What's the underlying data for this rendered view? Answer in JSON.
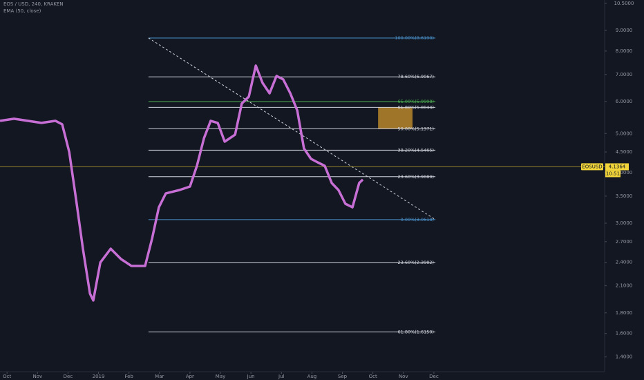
{
  "chart_data": {
    "type": "line",
    "title": "EOS / USD, 240, KRAKEN",
    "subtitle": "EMA (50, close)",
    "log": true,
    "xlim": [
      -0.23,
      19.6
    ],
    "ylim": [
      1.287,
      10.7
    ],
    "xticks": [
      {
        "value": 0,
        "label": "Oct"
      },
      {
        "value": 1,
        "label": "Nov"
      },
      {
        "value": 2,
        "label": "Dec"
      },
      {
        "value": 3,
        "label": "2019"
      },
      {
        "value": 4,
        "label": "Feb"
      },
      {
        "value": 5,
        "label": "Mar"
      },
      {
        "value": 6,
        "label": "Apr"
      },
      {
        "value": 7,
        "label": "May"
      },
      {
        "value": 8,
        "label": "Jun"
      },
      {
        "value": 9,
        "label": "Jul"
      },
      {
        "value": 10,
        "label": "Aug"
      },
      {
        "value": 11,
        "label": "Sep"
      },
      {
        "value": 12,
        "label": "Oct"
      },
      {
        "value": 13,
        "label": "Nov"
      },
      {
        "value": 14,
        "label": "Dec"
      }
    ],
    "yticks": [
      {
        "value": 10.5,
        "label": "10.5000"
      },
      {
        "value": 9,
        "label": "9.0000"
      },
      {
        "value": 8,
        "label": "8.0000"
      },
      {
        "value": 7,
        "label": "7.0000"
      },
      {
        "value": 6,
        "label": "6.0000"
      },
      {
        "value": 5,
        "label": "5.0000"
      },
      {
        "value": 4.5,
        "label": "4.5000"
      },
      {
        "value": 4,
        "label": "4.0000"
      },
      {
        "value": 3.5,
        "label": "3.5000"
      },
      {
        "value": 3,
        "label": "3.0000"
      },
      {
        "value": 2.7,
        "label": "2.7000"
      },
      {
        "value": 2.4,
        "label": "2.4000"
      },
      {
        "value": 2.1,
        "label": "2.1000"
      },
      {
        "value": 1.8,
        "label": "1.8000"
      },
      {
        "value": 1.6,
        "label": "1.6000"
      },
      {
        "value": 1.4,
        "label": "1.4000"
      }
    ],
    "series": [
      {
        "name": "EMA (50, close)",
        "color": "#c86fd6",
        "x": [
          -0.23,
          0.23,
          0.68,
          1.13,
          1.59,
          1.81,
          2.04,
          2.27,
          2.49,
          2.72,
          2.83,
          3.06,
          3.4,
          3.74,
          4.08,
          4.53,
          4.76,
          4.98,
          5.21,
          5.66,
          6.0,
          6.23,
          6.46,
          6.68,
          6.91,
          7.14,
          7.48,
          7.7,
          7.93,
          8.16,
          8.38,
          8.61,
          8.84,
          9.06,
          9.29,
          9.52,
          9.74,
          9.97,
          10.19,
          10.42,
          10.65,
          10.87,
          11.1,
          11.33,
          11.55,
          11.67
        ],
        "values": [
          5.374,
          5.438,
          5.374,
          5.311,
          5.374,
          5.269,
          4.501,
          3.417,
          2.594,
          2.008,
          1.931,
          2.398,
          2.594,
          2.445,
          2.351,
          2.351,
          2.752,
          3.285,
          3.555,
          3.625,
          3.697,
          4.161,
          4.87,
          5.374,
          5.311,
          4.775,
          4.967,
          5.93,
          6.168,
          7.363,
          6.673,
          6.29,
          6.941,
          6.806,
          6.29,
          5.701,
          4.591,
          4.328,
          4.243,
          4.161,
          3.771,
          3.625,
          3.35,
          3.285,
          3.771,
          3.846
        ]
      }
    ],
    "fib_levels": [
      {
        "label": "100.00%(8.6190)",
        "value": 8.619,
        "color": "#4a90c8"
      },
      {
        "label": "78.60%(6.9067)",
        "value": 6.9067,
        "color": "#d1d4dc"
      },
      {
        "label": "65.00%(5.9998)",
        "value": 5.9998,
        "color": "#4caf50"
      },
      {
        "label": "61.80%(5.8044)",
        "value": 5.8044,
        "color": "#d1d4dc"
      },
      {
        "label": "50.00%(5.1371)",
        "value": 5.1371,
        "color": "#d1d4dc"
      },
      {
        "label": "38.20%(4.5465)",
        "value": 4.5465,
        "color": "#d1d4dc"
      },
      {
        "label": "23.60%(3.9089)",
        "value": 3.9089,
        "color": "#d1d4dc"
      },
      {
        "label": "0.00%(3.0618)",
        "value": 3.0618,
        "color": "#4a90c8"
      },
      {
        "label": "-23.60%(2.3982)",
        "value": 2.3982,
        "color": "#d1d4dc"
      },
      {
        "label": "-61.80%(1.6150)",
        "value": 1.615,
        "color": "#d1d4dc"
      }
    ],
    "fib_x": [
      4.64,
      14.05
    ],
    "trendline": {
      "x": [
        4.64,
        14.05
      ],
      "y": [
        8.619,
        3.0618
      ]
    },
    "box": {
      "x": [
        12.17,
        13.3
      ],
      "y": [
        5.1371,
        5.8044
      ],
      "color": "#b8862b"
    },
    "current_price": {
      "label": "EOSUSD",
      "value": 4.1364,
      "countdown": "10:51",
      "color": "#f0d43a"
    }
  }
}
